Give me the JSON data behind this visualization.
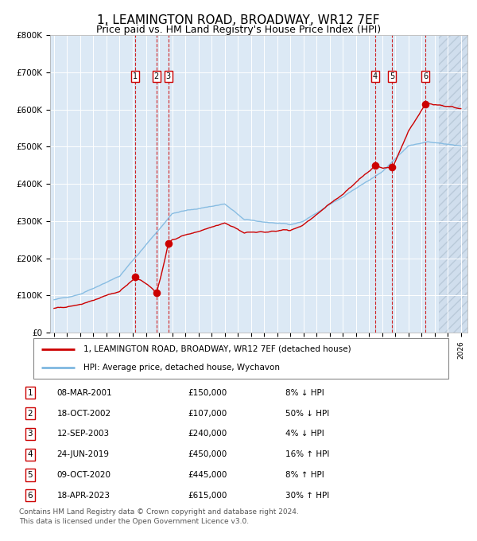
{
  "title": "1, LEAMINGTON ROAD, BROADWAY, WR12 7EF",
  "subtitle": "Price paid vs. HM Land Registry's House Price Index (HPI)",
  "title_fontsize": 11,
  "subtitle_fontsize": 9,
  "background_color": "#dce9f5",
  "hpi_color": "#7fb8e0",
  "price_color": "#cc0000",
  "ylim": [
    0,
    800000
  ],
  "yticks": [
    0,
    100000,
    200000,
    300000,
    400000,
    500000,
    600000,
    700000,
    800000
  ],
  "ytick_labels": [
    "£0",
    "£100K",
    "£200K",
    "£300K",
    "£400K",
    "£500K",
    "£600K",
    "£700K",
    "£800K"
  ],
  "x_start_year": 1995,
  "x_end_year": 2026,
  "sales": [
    {
      "num": 1,
      "date_dec": 2001.19,
      "price": 150000
    },
    {
      "num": 2,
      "date_dec": 2002.8,
      "price": 107000
    },
    {
      "num": 3,
      "date_dec": 2003.71,
      "price": 240000
    },
    {
      "num": 4,
      "date_dec": 2019.48,
      "price": 450000
    },
    {
      "num": 5,
      "date_dec": 2020.77,
      "price": 445000
    },
    {
      "num": 6,
      "date_dec": 2023.3,
      "price": 615000
    }
  ],
  "legend_line1": "1, LEAMINGTON ROAD, BROADWAY, WR12 7EF (detached house)",
  "legend_line2": "HPI: Average price, detached house, Wychavon",
  "table_rows": [
    {
      "num": 1,
      "date": "08-MAR-2001",
      "price": "£150,000",
      "hpi": "8% ↓ HPI"
    },
    {
      "num": 2,
      "date": "18-OCT-2002",
      "price": "£107,000",
      "hpi": "50% ↓ HPI"
    },
    {
      "num": 3,
      "date": "12-SEP-2003",
      "price": "£240,000",
      "hpi": "4% ↓ HPI"
    },
    {
      "num": 4,
      "date": "24-JUN-2019",
      "price": "£450,000",
      "hpi": "16% ↑ HPI"
    },
    {
      "num": 5,
      "date": "09-OCT-2020",
      "price": "£445,000",
      "hpi": "8% ↑ HPI"
    },
    {
      "num": 6,
      "date": "18-APR-2023",
      "price": "£615,000",
      "hpi": "30% ↑ HPI"
    }
  ],
  "footnote1": "Contains HM Land Registry data © Crown copyright and database right 2024.",
  "footnote2": "This data is licensed under the Open Government Licence v3.0."
}
